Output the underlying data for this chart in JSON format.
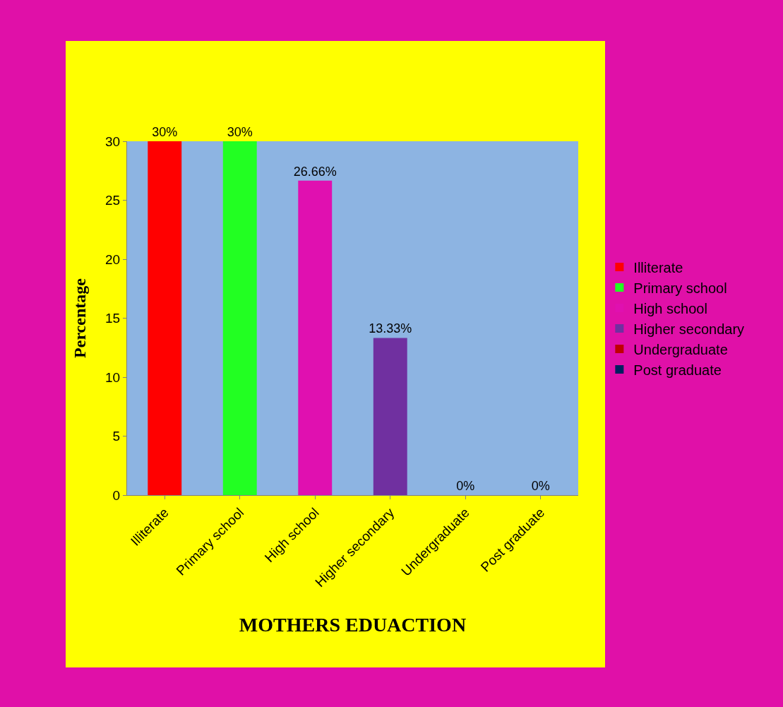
{
  "chart_data": {
    "type": "bar",
    "xlabel": "MOTHERS EDUACTION",
    "ylabel": "Percentage",
    "categories": [
      "Illiterate",
      "Primary school",
      "High school",
      "Higher secondary",
      "Undergraduate",
      "Post graduate"
    ],
    "series": [
      {
        "name": "Illiterate",
        "color": "#ff0000",
        "values": [
          30,
          null,
          null,
          null,
          null,
          null
        ],
        "value_labels": [
          "30%",
          null,
          null,
          null,
          null,
          null
        ]
      },
      {
        "name": "Primary school",
        "color": "#22ff22",
        "values": [
          null,
          30,
          null,
          null,
          null,
          null
        ],
        "value_labels": [
          null,
          "30%",
          null,
          null,
          null,
          null
        ]
      },
      {
        "name": "High school",
        "color": "#e010b0",
        "values": [
          null,
          null,
          26.66,
          null,
          null,
          null
        ],
        "value_labels": [
          null,
          null,
          "26.66%",
          null,
          null,
          null
        ]
      },
      {
        "name": "Higher secondary",
        "color": "#7030a0",
        "values": [
          null,
          null,
          null,
          13.33,
          null,
          null
        ],
        "value_labels": [
          null,
          null,
          null,
          "13.33%",
          null,
          null
        ]
      },
      {
        "name": "Undergraduate",
        "color": "#c00000",
        "values": [
          null,
          null,
          null,
          null,
          0,
          null
        ],
        "value_labels": [
          null,
          null,
          null,
          null,
          "0%",
          null
        ]
      },
      {
        "name": "Post graduate",
        "color": "#002060",
        "values": [
          null,
          null,
          null,
          null,
          null,
          0
        ],
        "value_labels": [
          null,
          null,
          null,
          null,
          null,
          "0%"
        ]
      }
    ],
    "ylim": [
      0,
      30
    ],
    "yticks": [
      0,
      5,
      10,
      15,
      20,
      25,
      30
    ],
    "legend": "right"
  }
}
